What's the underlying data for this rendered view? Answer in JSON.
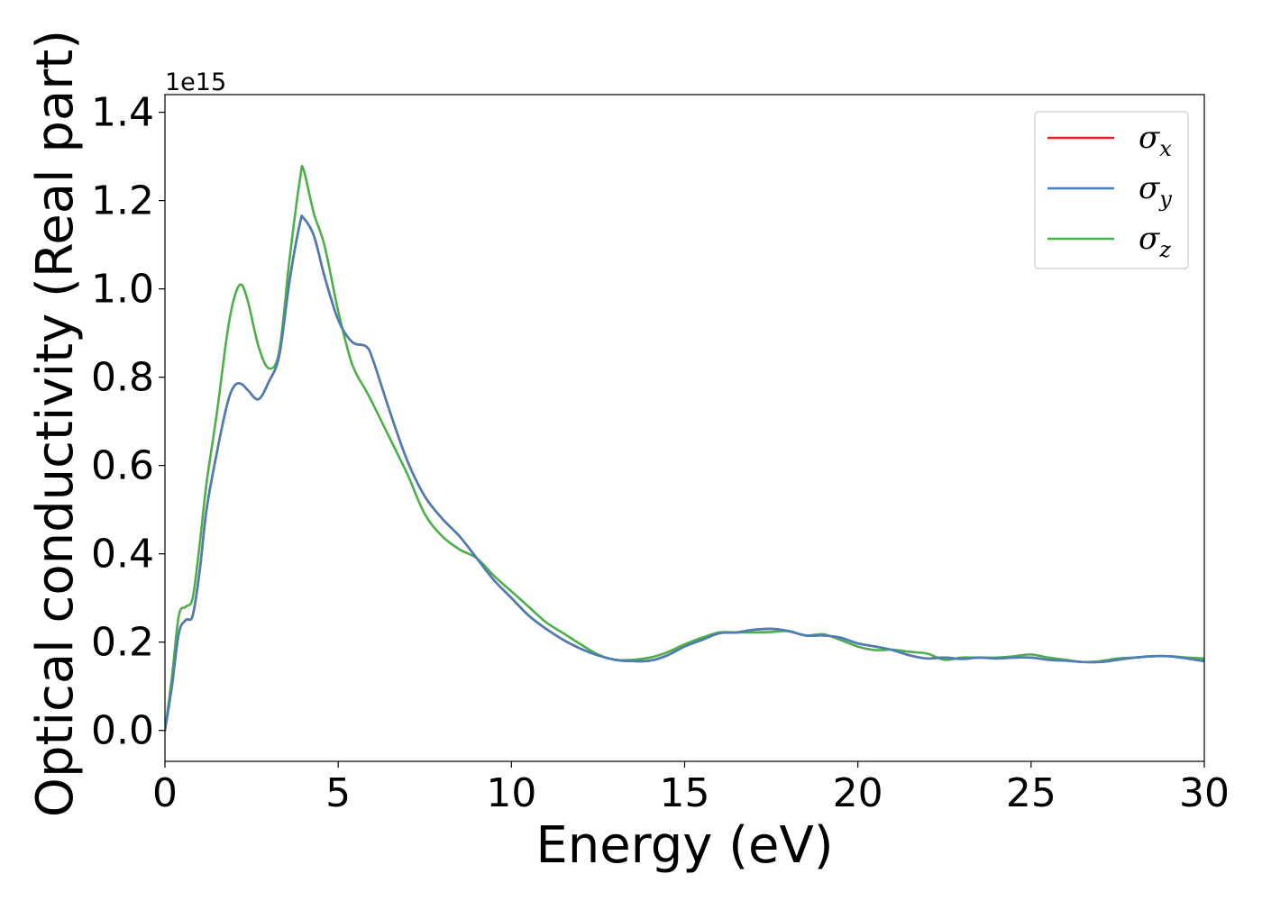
{
  "chart_data": {
    "type": "line",
    "title": "",
    "xlabel": "Energy (eV)",
    "ylabel": "Optical conductivity (Real part)",
    "y_exponent_label": "1e15",
    "xlim": [
      0,
      30
    ],
    "ylim": [
      -0.07,
      1.44
    ],
    "x_ticks": [
      0,
      5,
      10,
      15,
      20,
      25,
      30
    ],
    "x_tick_labels": [
      "0",
      "5",
      "10",
      "15",
      "20",
      "25",
      "30"
    ],
    "y_ticks": [
      0.0,
      0.2,
      0.4,
      0.6,
      0.8,
      1.0,
      1.2,
      1.4
    ],
    "y_tick_labels": [
      "0.0",
      "0.2",
      "0.4",
      "0.6",
      "0.8",
      "1.0",
      "1.2",
      "1.4"
    ],
    "grid": false,
    "legend_position": "top-right",
    "series": [
      {
        "name": "σ",
        "subscript": "x",
        "color": "#d62728",
        "x": [
          0,
          0.2,
          0.4,
          0.6,
          0.8,
          1.0,
          1.2,
          1.5,
          1.8,
          2.0,
          2.2,
          2.4,
          2.7,
          3.0,
          3.3,
          3.6,
          3.9,
          4.0,
          4.3,
          4.6,
          5.0,
          5.4,
          5.8,
          6.0,
          6.5,
          7.0,
          7.5,
          8.0,
          8.5,
          9.0,
          9.5,
          10.0,
          10.5,
          11.0,
          11.5,
          12.0,
          12.5,
          13.0,
          13.5,
          14.0,
          14.5,
          15.0,
          15.5,
          16.0,
          16.5,
          17.0,
          17.5,
          18.0,
          18.5,
          19.0,
          19.5,
          20.0,
          20.5,
          21.0,
          21.5,
          22.0,
          22.5,
          23.0,
          23.5,
          24.0,
          24.5,
          25.0,
          25.5,
          26.0,
          26.5,
          27.0,
          27.5,
          28.0,
          28.5,
          29.0,
          29.5,
          30.0
        ],
        "y": [
          0.0,
          0.1,
          0.22,
          0.25,
          0.26,
          0.36,
          0.5,
          0.63,
          0.74,
          0.78,
          0.785,
          0.77,
          0.75,
          0.79,
          0.85,
          1.02,
          1.15,
          1.16,
          1.12,
          1.03,
          0.93,
          0.88,
          0.87,
          0.84,
          0.72,
          0.61,
          0.53,
          0.48,
          0.44,
          0.39,
          0.34,
          0.3,
          0.26,
          0.23,
          0.205,
          0.185,
          0.17,
          0.16,
          0.157,
          0.158,
          0.17,
          0.19,
          0.205,
          0.22,
          0.222,
          0.228,
          0.23,
          0.225,
          0.215,
          0.215,
          0.21,
          0.197,
          0.19,
          0.182,
          0.17,
          0.163,
          0.165,
          0.162,
          0.165,
          0.163,
          0.165,
          0.165,
          0.16,
          0.158,
          0.155,
          0.155,
          0.16,
          0.165,
          0.168,
          0.168,
          0.163,
          0.157
        ]
      },
      {
        "name": "σ",
        "subscript": "y",
        "color": "#4a7eb5",
        "x": [
          0,
          0.2,
          0.4,
          0.6,
          0.8,
          1.0,
          1.2,
          1.5,
          1.8,
          2.0,
          2.2,
          2.4,
          2.7,
          3.0,
          3.3,
          3.6,
          3.9,
          4.0,
          4.3,
          4.6,
          5.0,
          5.4,
          5.8,
          6.0,
          6.5,
          7.0,
          7.5,
          8.0,
          8.5,
          9.0,
          9.5,
          10.0,
          10.5,
          11.0,
          11.5,
          12.0,
          12.5,
          13.0,
          13.5,
          14.0,
          14.5,
          15.0,
          15.5,
          16.0,
          16.5,
          17.0,
          17.5,
          18.0,
          18.5,
          19.0,
          19.5,
          20.0,
          20.5,
          21.0,
          21.5,
          22.0,
          22.5,
          23.0,
          23.5,
          24.0,
          24.5,
          25.0,
          25.5,
          26.0,
          26.5,
          27.0,
          27.5,
          28.0,
          28.5,
          29.0,
          29.5,
          30.0
        ],
        "y": [
          0.0,
          0.1,
          0.22,
          0.25,
          0.26,
          0.36,
          0.5,
          0.63,
          0.74,
          0.78,
          0.785,
          0.77,
          0.75,
          0.79,
          0.85,
          1.02,
          1.15,
          1.16,
          1.12,
          1.03,
          0.93,
          0.88,
          0.87,
          0.84,
          0.72,
          0.61,
          0.53,
          0.48,
          0.44,
          0.39,
          0.34,
          0.3,
          0.26,
          0.23,
          0.205,
          0.185,
          0.17,
          0.16,
          0.157,
          0.158,
          0.17,
          0.19,
          0.205,
          0.22,
          0.222,
          0.228,
          0.23,
          0.225,
          0.215,
          0.215,
          0.21,
          0.197,
          0.19,
          0.182,
          0.17,
          0.163,
          0.165,
          0.162,
          0.165,
          0.163,
          0.165,
          0.165,
          0.16,
          0.158,
          0.155,
          0.155,
          0.16,
          0.165,
          0.168,
          0.168,
          0.163,
          0.157
        ]
      },
      {
        "name": "σ",
        "subscript": "z",
        "color": "#4daf4a",
        "x": [
          0,
          0.2,
          0.4,
          0.6,
          0.8,
          1.0,
          1.2,
          1.5,
          1.8,
          2.0,
          2.2,
          2.4,
          2.7,
          3.0,
          3.3,
          3.6,
          3.9,
          4.0,
          4.3,
          4.6,
          5.0,
          5.4,
          5.8,
          6.0,
          6.5,
          7.0,
          7.5,
          8.0,
          8.5,
          9.0,
          9.5,
          10.0,
          10.5,
          11.0,
          11.5,
          12.0,
          12.5,
          13.0,
          13.5,
          14.0,
          14.5,
          15.0,
          15.5,
          16.0,
          16.5,
          17.0,
          17.5,
          18.0,
          18.5,
          19.0,
          19.5,
          20.0,
          20.5,
          21.0,
          21.5,
          22.0,
          22.5,
          23.0,
          23.5,
          24.0,
          24.5,
          25.0,
          25.5,
          26.0,
          26.5,
          27.0,
          27.5,
          28.0,
          28.5,
          29.0,
          29.5,
          30.0
        ],
        "y": [
          0.0,
          0.12,
          0.26,
          0.28,
          0.3,
          0.42,
          0.56,
          0.72,
          0.9,
          0.98,
          1.01,
          0.97,
          0.87,
          0.82,
          0.86,
          1.07,
          1.25,
          1.27,
          1.17,
          1.1,
          0.95,
          0.83,
          0.77,
          0.74,
          0.66,
          0.58,
          0.49,
          0.44,
          0.41,
          0.39,
          0.35,
          0.315,
          0.28,
          0.245,
          0.22,
          0.195,
          0.172,
          0.16,
          0.16,
          0.165,
          0.177,
          0.195,
          0.21,
          0.222,
          0.222,
          0.222,
          0.223,
          0.225,
          0.215,
          0.218,
          0.205,
          0.19,
          0.182,
          0.183,
          0.178,
          0.174,
          0.16,
          0.165,
          0.165,
          0.165,
          0.168,
          0.172,
          0.165,
          0.16,
          0.155,
          0.157,
          0.163,
          0.165,
          0.168,
          0.168,
          0.165,
          0.163
        ]
      }
    ]
  }
}
